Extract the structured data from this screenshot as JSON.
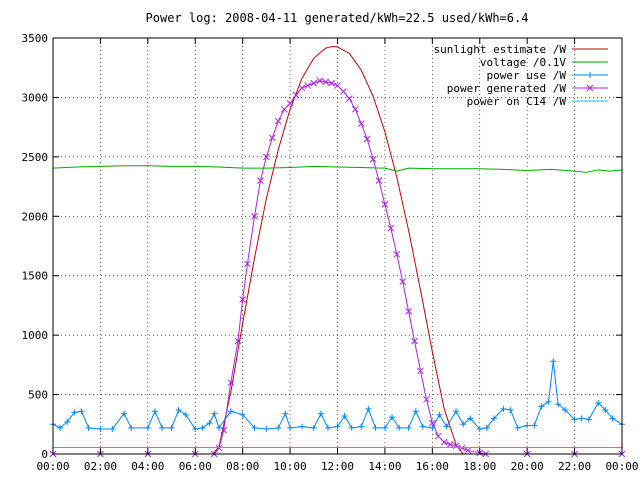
{
  "chart_data": {
    "type": "line",
    "title": "Power log: 2008-04-11 generated/kWh=22.5 used/kWh=6.4",
    "xlabel": "",
    "ylabel": "",
    "xlim": [
      "00:00",
      "24:00"
    ],
    "ylim": [
      0,
      3500
    ],
    "x_ticks": [
      "00:00",
      "02:00",
      "04:00",
      "06:00",
      "08:00",
      "10:00",
      "12:00",
      "14:00",
      "16:00",
      "18:00",
      "20:00",
      "22:00",
      "00:00"
    ],
    "y_ticks": [
      0,
      500,
      1000,
      1500,
      2000,
      2500,
      3000,
      3500
    ],
    "grid": true,
    "legend_position": "top-right",
    "series": [
      {
        "name": "sunlight estimate /W",
        "color": "#cc0000",
        "marker": "none",
        "points": [
          [
            6.75,
            0
          ],
          [
            7.0,
            60
          ],
          [
            7.5,
            520
          ],
          [
            8.0,
            1100
          ],
          [
            8.5,
            1650
          ],
          [
            9.0,
            2150
          ],
          [
            9.5,
            2560
          ],
          [
            10.0,
            2900
          ],
          [
            10.5,
            3160
          ],
          [
            11.0,
            3330
          ],
          [
            11.5,
            3415
          ],
          [
            11.8,
            3430
          ],
          [
            12.0,
            3425
          ],
          [
            12.5,
            3370
          ],
          [
            13.0,
            3230
          ],
          [
            13.5,
            3010
          ],
          [
            14.0,
            2710
          ],
          [
            14.5,
            2330
          ],
          [
            15.0,
            1880
          ],
          [
            15.5,
            1380
          ],
          [
            16.0,
            860
          ],
          [
            16.5,
            380
          ],
          [
            17.0,
            80
          ],
          [
            17.3,
            0
          ]
        ]
      },
      {
        "name": "voltage /0.1V",
        "color": "#00aa00",
        "marker": "none",
        "points": [
          [
            0.0,
            2405
          ],
          [
            1.0,
            2415
          ],
          [
            2.0,
            2420
          ],
          [
            3.0,
            2425
          ],
          [
            4.0,
            2425
          ],
          [
            5.0,
            2420
          ],
          [
            6.0,
            2420
          ],
          [
            7.0,
            2415
          ],
          [
            8.0,
            2405
          ],
          [
            9.0,
            2405
          ],
          [
            10.0,
            2410
          ],
          [
            11.0,
            2420
          ],
          [
            12.0,
            2415
          ],
          [
            13.0,
            2410
          ],
          [
            14.0,
            2405
          ],
          [
            14.5,
            2380
          ],
          [
            15.0,
            2405
          ],
          [
            16.0,
            2400
          ],
          [
            17.0,
            2400
          ],
          [
            18.0,
            2400
          ],
          [
            19.0,
            2395
          ],
          [
            20.0,
            2385
          ],
          [
            21.0,
            2395
          ],
          [
            22.0,
            2380
          ],
          [
            22.5,
            2370
          ],
          [
            23.0,
            2390
          ],
          [
            23.5,
            2380
          ],
          [
            24.0,
            2390
          ]
        ]
      },
      {
        "name": "power use /W",
        "color": "#0088ff",
        "marker": "plus",
        "points": [
          [
            0.0,
            250
          ],
          [
            0.3,
            220
          ],
          [
            0.6,
            270
          ],
          [
            0.9,
            350
          ],
          [
            1.2,
            360
          ],
          [
            1.5,
            220
          ],
          [
            2.0,
            210
          ],
          [
            2.5,
            210
          ],
          [
            3.0,
            340
          ],
          [
            3.3,
            220
          ],
          [
            4.0,
            220
          ],
          [
            4.3,
            360
          ],
          [
            4.6,
            220
          ],
          [
            5.0,
            220
          ],
          [
            5.3,
            370
          ],
          [
            5.6,
            330
          ],
          [
            6.0,
            210
          ],
          [
            6.3,
            220
          ],
          [
            6.6,
            260
          ],
          [
            6.8,
            340
          ],
          [
            7.0,
            220
          ],
          [
            7.5,
            360
          ],
          [
            8.0,
            330
          ],
          [
            8.5,
            220
          ],
          [
            9.0,
            210
          ],
          [
            9.5,
            220
          ],
          [
            9.8,
            340
          ],
          [
            10.0,
            220
          ],
          [
            10.5,
            230
          ],
          [
            11.0,
            220
          ],
          [
            11.3,
            340
          ],
          [
            11.6,
            220
          ],
          [
            12.0,
            230
          ],
          [
            12.3,
            320
          ],
          [
            12.6,
            220
          ],
          [
            13.0,
            230
          ],
          [
            13.3,
            380
          ],
          [
            13.6,
            220
          ],
          [
            14.0,
            220
          ],
          [
            14.3,
            310
          ],
          [
            14.6,
            220
          ],
          [
            15.0,
            220
          ],
          [
            15.3,
            360
          ],
          [
            15.6,
            230
          ],
          [
            16.0,
            220
          ],
          [
            16.3,
            330
          ],
          [
            16.6,
            230
          ],
          [
            17.0,
            360
          ],
          [
            17.3,
            250
          ],
          [
            17.6,
            300
          ],
          [
            18.0,
            210
          ],
          [
            18.3,
            220
          ],
          [
            18.6,
            300
          ],
          [
            19.0,
            380
          ],
          [
            19.3,
            370
          ],
          [
            19.6,
            220
          ],
          [
            20.0,
            240
          ],
          [
            20.3,
            240
          ],
          [
            20.6,
            400
          ],
          [
            20.9,
            440
          ],
          [
            21.1,
            780
          ],
          [
            21.3,
            420
          ],
          [
            21.6,
            370
          ],
          [
            22.0,
            290
          ],
          [
            22.3,
            300
          ],
          [
            22.6,
            290
          ],
          [
            23.0,
            430
          ],
          [
            23.3,
            370
          ],
          [
            23.6,
            300
          ],
          [
            24.0,
            250
          ]
        ]
      },
      {
        "name": "power generated /W",
        "color": "#aa22ee",
        "marker": "cross",
        "points": [
          [
            0.0,
            0
          ],
          [
            2.0,
            0
          ],
          [
            4.0,
            0
          ],
          [
            6.0,
            0
          ],
          [
            6.8,
            0
          ],
          [
            7.0,
            50
          ],
          [
            7.2,
            200
          ],
          [
            7.5,
            600
          ],
          [
            7.8,
            950
          ],
          [
            8.0,
            1300
          ],
          [
            8.2,
            1600
          ],
          [
            8.5,
            2000
          ],
          [
            8.75,
            2300
          ],
          [
            9.0,
            2500
          ],
          [
            9.25,
            2660
          ],
          [
            9.5,
            2800
          ],
          [
            9.75,
            2900
          ],
          [
            10.0,
            2950
          ],
          [
            10.25,
            3020
          ],
          [
            10.5,
            3080
          ],
          [
            10.75,
            3100
          ],
          [
            11.0,
            3120
          ],
          [
            11.25,
            3140
          ],
          [
            11.5,
            3130
          ],
          [
            11.75,
            3120
          ],
          [
            12.0,
            3100
          ],
          [
            12.25,
            3050
          ],
          [
            12.5,
            2990
          ],
          [
            12.75,
            2900
          ],
          [
            13.0,
            2780
          ],
          [
            13.25,
            2650
          ],
          [
            13.5,
            2480
          ],
          [
            13.75,
            2300
          ],
          [
            14.0,
            2100
          ],
          [
            14.25,
            1900
          ],
          [
            14.5,
            1680
          ],
          [
            14.75,
            1450
          ],
          [
            15.0,
            1200
          ],
          [
            15.25,
            950
          ],
          [
            15.5,
            700
          ],
          [
            15.75,
            460
          ],
          [
            16.0,
            260
          ],
          [
            16.25,
            150
          ],
          [
            16.5,
            100
          ],
          [
            16.75,
            80
          ],
          [
            17.0,
            70
          ],
          [
            17.25,
            50
          ],
          [
            17.5,
            30
          ],
          [
            18.0,
            10
          ],
          [
            18.25,
            0
          ],
          [
            20.0,
            0
          ],
          [
            22.0,
            0
          ],
          [
            24.0,
            0
          ]
        ]
      },
      {
        "name": "power on C14 /W",
        "color": "#00cccc",
        "marker": "none",
        "points": [
          [
            0.0,
            55
          ],
          [
            4.0,
            55
          ],
          [
            8.0,
            55
          ],
          [
            12.0,
            55
          ],
          [
            16.0,
            55
          ],
          [
            20.0,
            55
          ],
          [
            24.0,
            55
          ]
        ]
      }
    ]
  }
}
